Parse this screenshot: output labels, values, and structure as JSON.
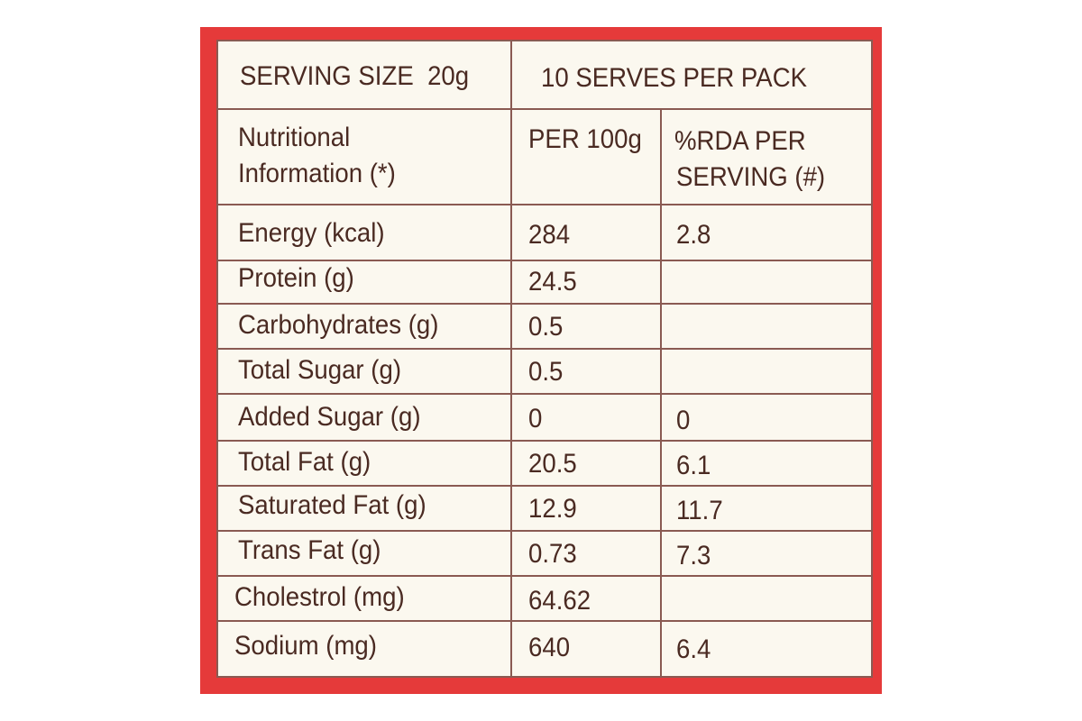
{
  "header": {
    "serving_size": "SERVING SIZE  20g",
    "serves_per_pack": "10 SERVES PER PACK"
  },
  "columns": {
    "label_line1": "Nutritional",
    "label_line2": "Information (*)",
    "per_100g": "PER 100g",
    "rda_line1": "%RDA PER",
    "rda_line2": "SERVING (#)"
  },
  "rows": [
    {
      "name": "Energy (kcal)",
      "per_100g": "284",
      "rda": "2.8"
    },
    {
      "name": "Protein (g)",
      "per_100g": "24.5",
      "rda": ""
    },
    {
      "name": "Carbohydrates (g)",
      "per_100g": "0.5",
      "rda": ""
    },
    {
      "name": "Total Sugar (g)",
      "per_100g": "0.5",
      "rda": ""
    },
    {
      "name": "Added Sugar (g)",
      "per_100g": "0",
      "rda": "0"
    },
    {
      "name": "Total Fat (g)",
      "per_100g": "20.5",
      "rda": "6.1"
    },
    {
      "name": "Saturated Fat (g)",
      "per_100g": "12.9",
      "rda": "11.7"
    },
    {
      "name": "Trans Fat (g)",
      "per_100g": "0.73",
      "rda": "7.3"
    },
    {
      "name": "Cholestrol (mg)",
      "per_100g": "64.62",
      "rda": ""
    },
    {
      "name": "Sodium (mg)",
      "per_100g": "640",
      "rda": "6.4"
    }
  ],
  "colors": {
    "frame": "#e53a3a",
    "panel": "#fbf8ef",
    "ink": "#4a2a22",
    "rule": "#8a5a52"
  }
}
